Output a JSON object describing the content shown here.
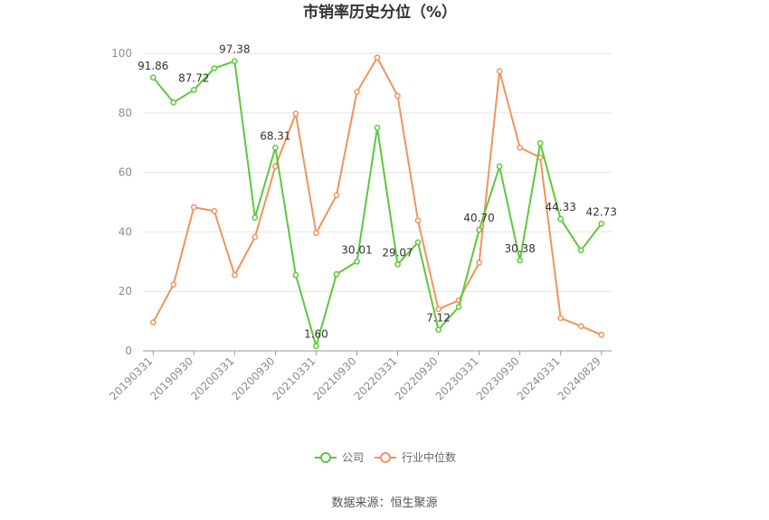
{
  "chart_data": {
    "type": "line",
    "title": "市销率历史分位（%）",
    "source": "数据来源：恒生聚源",
    "ylim": [
      0,
      100
    ],
    "yticks": [
      0,
      20,
      40,
      60,
      80,
      100
    ],
    "grid": true,
    "legend_position": "bottom",
    "x": [
      "20190331",
      "20190630",
      "20190930",
      "20191231",
      "20200331",
      "20200630",
      "20200930",
      "20201231",
      "20210331",
      "20210630",
      "20210930",
      "20211231",
      "20220331",
      "20220630",
      "20220930",
      "20221231",
      "20230331",
      "20230630",
      "20230930",
      "20231231",
      "20240331",
      "20240630",
      "20240829"
    ],
    "xtick_labels": [
      "20190331",
      "20190930",
      "20200331",
      "20200930",
      "20210331",
      "20210930",
      "20220331",
      "20220930",
      "20230331",
      "20230930",
      "20240331",
      "20240829"
    ],
    "series": [
      {
        "name": "公司",
        "color": "#5cc93a",
        "values": [
          91.86,
          83.5,
          87.72,
          95.0,
          97.38,
          44.8,
          68.31,
          25.5,
          1.6,
          25.8,
          30.01,
          75.0,
          29.07,
          36.5,
          7.12,
          14.8,
          40.7,
          62.0,
          30.38,
          69.8,
          44.33,
          33.8,
          42.73
        ],
        "labels": [
          "91.86",
          "",
          "87.72",
          "",
          "97.38",
          "",
          "68.31",
          "",
          "1.60",
          "",
          "30.01",
          "",
          "29.07",
          "",
          "7.12",
          "",
          "40.70",
          "",
          "30.38",
          "",
          "44.33",
          "",
          "42.73"
        ]
      },
      {
        "name": "行业中位数",
        "color": "#f0935e",
        "values": [
          9.6,
          22.3,
          48.3,
          47.0,
          25.5,
          38.3,
          62.0,
          79.7,
          39.6,
          52.3,
          87.0,
          98.6,
          85.7,
          43.8,
          14.0,
          17.0,
          29.6,
          94.0,
          68.3,
          65.0,
          11.0,
          8.3,
          5.4
        ]
      }
    ]
  }
}
